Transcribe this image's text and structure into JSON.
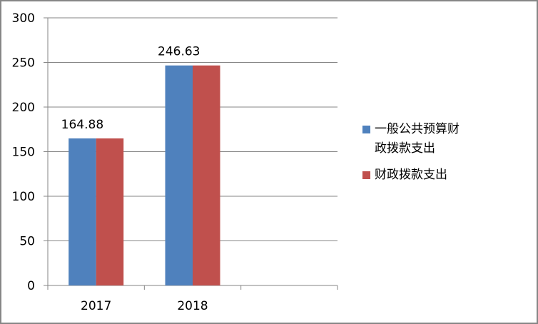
{
  "chart_data": {
    "type": "bar",
    "categories": [
      "2017",
      "2018",
      ""
    ],
    "series": [
      {
        "name": "一般公共预算财政拨款支出",
        "values": [
          164.88,
          246.63,
          null
        ],
        "color": "#4F81BD",
        "data_labels": [
          "164.88",
          "246.63",
          ""
        ]
      },
      {
        "name": "财政拨款支出",
        "values": [
          164.88,
          246.63,
          null
        ],
        "color": "#C0504D"
      }
    ],
    "yticks": [
      "0",
      "50",
      "100",
      "150",
      "200",
      "250",
      "300"
    ],
    "ylim": [
      0,
      300
    ],
    "grid": true,
    "legend": "right",
    "title": "",
    "xlabel": "",
    "ylabel": ""
  }
}
